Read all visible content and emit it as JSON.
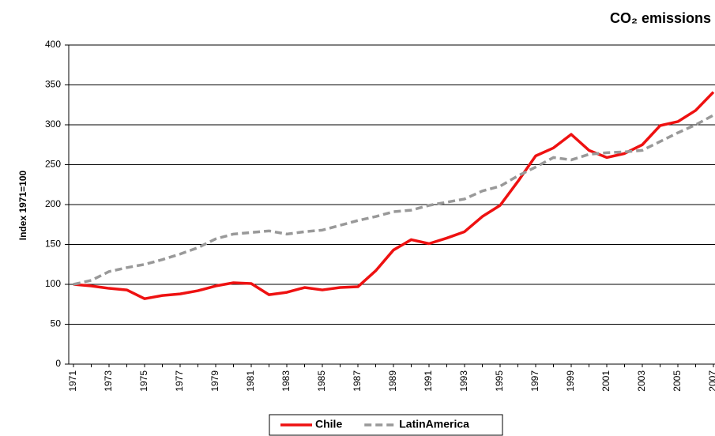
{
  "chart_data": {
    "type": "line",
    "title": "CO₂ emissions",
    "y_label": "Index 1971=100",
    "categories": [
      "1971",
      null,
      "1973",
      null,
      "1975",
      null,
      "1977",
      null,
      "1979",
      null,
      "1981",
      null,
      "1983",
      null,
      "1985",
      null,
      "1987",
      null,
      "1989",
      null,
      "1991",
      null,
      "1993",
      null,
      "1995",
      null,
      "1997",
      null,
      "1999",
      null,
      "2001",
      null,
      "2003",
      null,
      "2005",
      null,
      "2007"
    ],
    "series": [
      {
        "name": "Chile",
        "color": "#ee1111",
        "dashed": false,
        "values": [
          100,
          98,
          95,
          93,
          82,
          86,
          88,
          92,
          98,
          102,
          101,
          87,
          90,
          96,
          93,
          96,
          97,
          117,
          143,
          156,
          151,
          158,
          166,
          185,
          199,
          229,
          261,
          271,
          288,
          268,
          259,
          264,
          275,
          299,
          304,
          318,
          341
        ]
      },
      {
        "name": "LatinAmerica",
        "color": "#999999",
        "dashed": true,
        "values": [
          100,
          105,
          116,
          121,
          125,
          131,
          138,
          146,
          157,
          163,
          165,
          167,
          163,
          166,
          168,
          174,
          180,
          185,
          191,
          193,
          199,
          203,
          207,
          217,
          223,
          236,
          247,
          259,
          256,
          263,
          265,
          266,
          268,
          279,
          290,
          300,
          312
        ]
      }
    ],
    "ylim": [
      0,
      400
    ],
    "yticks": [
      0,
      50,
      100,
      150,
      200,
      250,
      300,
      350,
      400
    ],
    "grid": true,
    "legend": "bottom"
  }
}
